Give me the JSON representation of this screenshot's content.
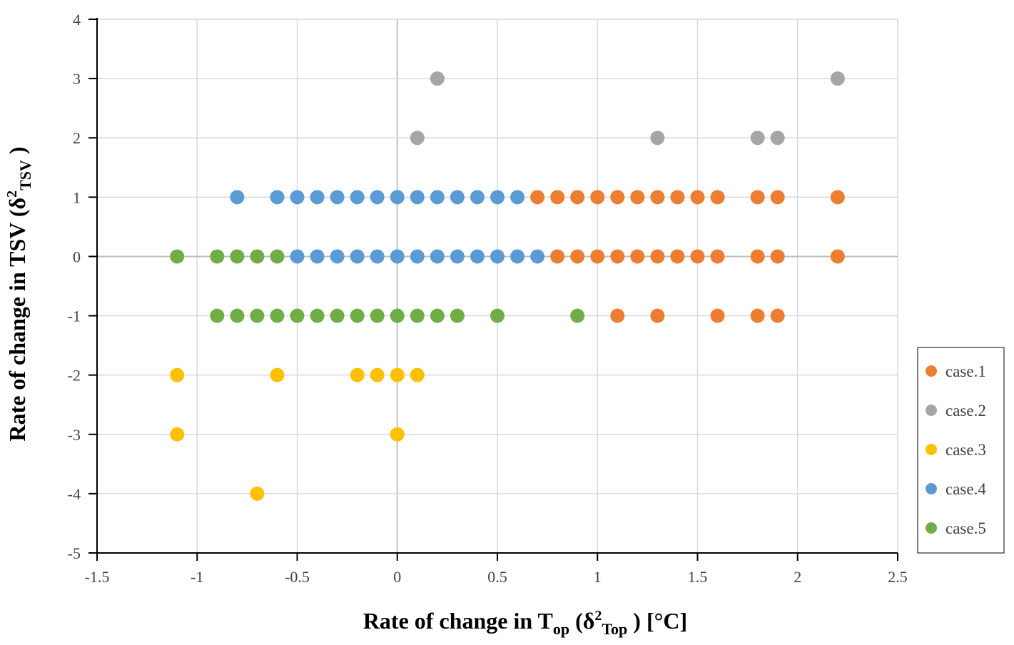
{
  "chart_data": {
    "type": "scatter",
    "xlabel": {
      "prefix": "Rate of change in T",
      "prefix_sub": "op",
      "middle": " (δ",
      "sup": "2",
      "middle_sub": "Top",
      "suffix": " ) [°C]"
    },
    "ylabel": {
      "prefix": "Rate of change in TSV (δ",
      "sup": "2",
      "sub": "TSV",
      "suffix": " )"
    },
    "xlim": [
      -1.5,
      2.5
    ],
    "ylim": [
      -5,
      4
    ],
    "x_ticks": [
      -1.5,
      -1,
      -0.5,
      0,
      0.5,
      1,
      1.5,
      2,
      2.5
    ],
    "y_ticks": [
      -5,
      -4,
      -3,
      -2,
      -1,
      0,
      1,
      2,
      3,
      4
    ],
    "x_tick_labels": [
      "-1.5",
      "-1",
      "-0.5",
      "0",
      "0.5",
      "1",
      "1.5",
      "2",
      "2.5"
    ],
    "y_tick_labels": [
      "-5",
      "-4",
      "-3",
      "-2",
      "-1",
      "0",
      "1",
      "2",
      "3",
      "4"
    ],
    "grid": true,
    "legend_position": "right",
    "series": [
      {
        "name": "case.1",
        "color": "#ED7D31",
        "points": [
          [
            0.7,
            1
          ],
          [
            0.8,
            1
          ],
          [
            0.9,
            1
          ],
          [
            1.0,
            1
          ],
          [
            1.1,
            1
          ],
          [
            1.2,
            1
          ],
          [
            1.3,
            1
          ],
          [
            1.4,
            1
          ],
          [
            1.5,
            1
          ],
          [
            1.6,
            1
          ],
          [
            1.8,
            1
          ],
          [
            1.9,
            1
          ],
          [
            2.2,
            1
          ],
          [
            0.8,
            0
          ],
          [
            0.9,
            0
          ],
          [
            1.0,
            0
          ],
          [
            1.1,
            0
          ],
          [
            1.2,
            0
          ],
          [
            1.3,
            0
          ],
          [
            1.4,
            0
          ],
          [
            1.5,
            0
          ],
          [
            1.6,
            0
          ],
          [
            1.8,
            0
          ],
          [
            1.9,
            0
          ],
          [
            2.2,
            0
          ],
          [
            1.1,
            -1
          ],
          [
            1.3,
            -1
          ],
          [
            1.6,
            -1
          ],
          [
            1.8,
            -1
          ],
          [
            1.9,
            -1
          ]
        ]
      },
      {
        "name": "case.2",
        "color": "#A5A5A5",
        "points": [
          [
            0.2,
            3
          ],
          [
            2.2,
            3
          ],
          [
            0.1,
            2
          ],
          [
            1.3,
            2
          ],
          [
            1.8,
            2
          ],
          [
            1.9,
            2
          ]
        ]
      },
      {
        "name": "case.3",
        "color": "#FFC000",
        "points": [
          [
            -1.1,
            -2
          ],
          [
            -0.6,
            -2
          ],
          [
            -0.2,
            -2
          ],
          [
            -0.1,
            -2
          ],
          [
            0.0,
            -2
          ],
          [
            0.1,
            -2
          ],
          [
            -1.1,
            -3
          ],
          [
            0.0,
            -3
          ],
          [
            -0.7,
            -4
          ]
        ]
      },
      {
        "name": "case.4",
        "color": "#5B9BD5",
        "points": [
          [
            -0.8,
            1
          ],
          [
            -0.6,
            1
          ],
          [
            -0.5,
            1
          ],
          [
            -0.4,
            1
          ],
          [
            -0.3,
            1
          ],
          [
            -0.2,
            1
          ],
          [
            -0.1,
            1
          ],
          [
            0.0,
            1
          ],
          [
            0.1,
            1
          ],
          [
            0.2,
            1
          ],
          [
            0.3,
            1
          ],
          [
            0.4,
            1
          ],
          [
            0.5,
            1
          ],
          [
            0.6,
            1
          ],
          [
            -0.5,
            0
          ],
          [
            -0.4,
            0
          ],
          [
            -0.3,
            0
          ],
          [
            -0.2,
            0
          ],
          [
            -0.1,
            0
          ],
          [
            0.0,
            0
          ],
          [
            0.1,
            0
          ],
          [
            0.2,
            0
          ],
          [
            0.3,
            0
          ],
          [
            0.4,
            0
          ],
          [
            0.5,
            0
          ],
          [
            0.6,
            0
          ],
          [
            0.7,
            0
          ]
        ]
      },
      {
        "name": "case.5",
        "color": "#70AD47",
        "points": [
          [
            -1.1,
            0
          ],
          [
            -0.9,
            0
          ],
          [
            -0.8,
            0
          ],
          [
            -0.7,
            0
          ],
          [
            -0.6,
            0
          ],
          [
            -0.9,
            -1
          ],
          [
            -0.8,
            -1
          ],
          [
            -0.7,
            -1
          ],
          [
            -0.6,
            -1
          ],
          [
            -0.5,
            -1
          ],
          [
            -0.4,
            -1
          ],
          [
            -0.3,
            -1
          ],
          [
            -0.2,
            -1
          ],
          [
            -0.1,
            -1
          ],
          [
            0.0,
            -1
          ],
          [
            0.1,
            -1
          ],
          [
            0.2,
            -1
          ],
          [
            0.3,
            -1
          ],
          [
            0.5,
            -1
          ],
          [
            0.9,
            -1
          ]
        ]
      }
    ]
  }
}
